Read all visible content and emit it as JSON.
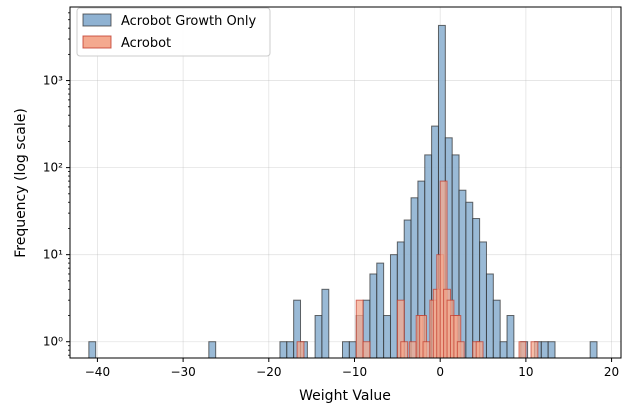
{
  "chart_data": {
    "type": "bar",
    "title": "",
    "xlabel": "Weight Value",
    "ylabel": "Frequency (log scale)",
    "xlim": [
      -43.2,
      21.1
    ],
    "ylim": [
      0.65,
      7000
    ],
    "yscale": "log",
    "grid": true,
    "legend_position": "top-left",
    "xticks": [
      -40,
      -30,
      -20,
      -10,
      0,
      10,
      20
    ],
    "yticks": [
      1,
      10,
      100,
      1000
    ],
    "xtick_labels": [
      "−40",
      "−30",
      "−20",
      "−10",
      "0",
      "10",
      "20"
    ],
    "ytick_labels": [
      "10⁰",
      "10¹",
      "10²",
      "10³"
    ],
    "bin_width": 0.8,
    "series": [
      {
        "name": "Acrobot Growth Only",
        "color": "#8fb2d2",
        "edge": "#2b2b2b",
        "bins": [
          [
            -40.6,
            1
          ],
          [
            -26.6,
            1
          ],
          [
            -18.3,
            1
          ],
          [
            -17.5,
            1
          ],
          [
            -16.7,
            3
          ],
          [
            -15.9,
            1
          ],
          [
            -14.2,
            2
          ],
          [
            -13.4,
            4
          ],
          [
            -11.0,
            1
          ],
          [
            -10.2,
            1
          ],
          [
            -9.4,
            2
          ],
          [
            -8.6,
            3
          ],
          [
            -7.8,
            6
          ],
          [
            -7.0,
            8
          ],
          [
            -6.2,
            2
          ],
          [
            -5.4,
            10
          ],
          [
            -4.6,
            14
          ],
          [
            -3.8,
            25
          ],
          [
            -3.0,
            45
          ],
          [
            -2.2,
            70
          ],
          [
            -1.4,
            140
          ],
          [
            -0.6,
            300
          ],
          [
            0.2,
            4300
          ],
          [
            1.0,
            220
          ],
          [
            1.8,
            140
          ],
          [
            2.6,
            55
          ],
          [
            3.4,
            40
          ],
          [
            4.2,
            26
          ],
          [
            5.0,
            14
          ],
          [
            5.8,
            6
          ],
          [
            6.6,
            3
          ],
          [
            7.4,
            1
          ],
          [
            8.2,
            2
          ],
          [
            9.8,
            1
          ],
          [
            11.4,
            1
          ],
          [
            12.2,
            1
          ],
          [
            13.0,
            1
          ],
          [
            17.9,
            1
          ]
        ]
      },
      {
        "name": "Acrobot",
        "color": "#f4a98f",
        "edge": "#c0392b",
        "bins": [
          [
            -16.3,
            1
          ],
          [
            -9.4,
            3
          ],
          [
            -8.6,
            1
          ],
          [
            -4.6,
            3
          ],
          [
            -4.2,
            1
          ],
          [
            -3.2,
            1
          ],
          [
            -2.4,
            2
          ],
          [
            -2.0,
            2
          ],
          [
            -1.6,
            1
          ],
          [
            -0.8,
            3
          ],
          [
            -0.4,
            4
          ],
          [
            0.0,
            10
          ],
          [
            0.4,
            70
          ],
          [
            0.8,
            4
          ],
          [
            1.2,
            3
          ],
          [
            1.6,
            2
          ],
          [
            2.0,
            2
          ],
          [
            2.4,
            1
          ],
          [
            4.2,
            1
          ],
          [
            4.6,
            1
          ],
          [
            9.6,
            1
          ],
          [
            11.0,
            1
          ]
        ]
      }
    ]
  }
}
